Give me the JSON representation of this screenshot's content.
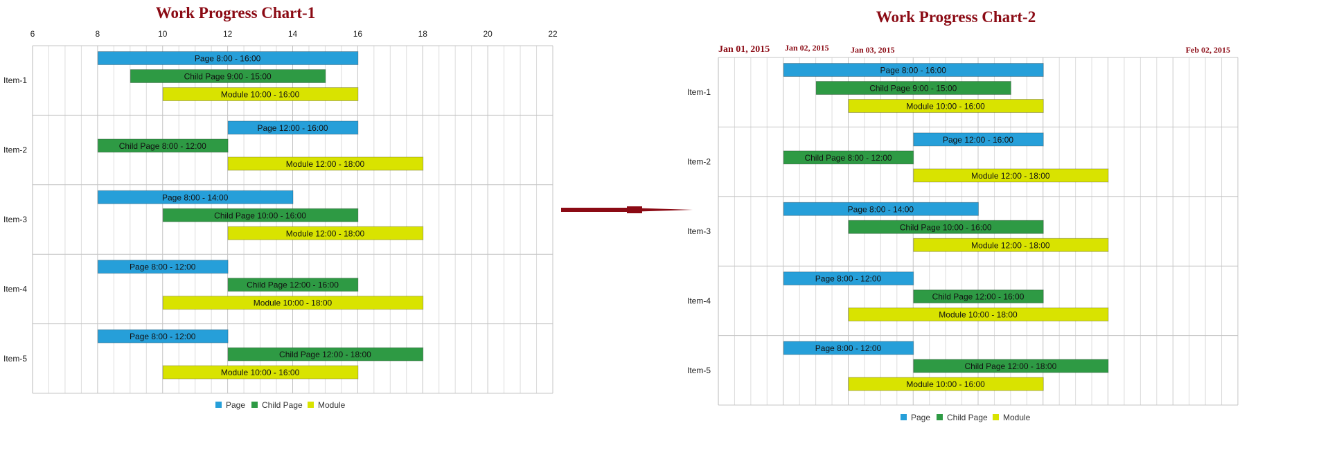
{
  "series_colors": {
    "page": "#269fd9",
    "child": "#2e9a44",
    "module": "#d9e300"
  },
  "arrow_color": "#8b0a14",
  "chart_data": [
    {
      "type": "bar",
      "title": "Work Progress Chart-1",
      "x_ticks": [
        "6",
        "8",
        "10",
        "12",
        "14",
        "16",
        "18",
        "20",
        "22"
      ],
      "xlim": [
        6,
        22
      ],
      "categories": [
        "Item-1",
        "Item-2",
        "Item-3",
        "Item-4",
        "Item-5"
      ],
      "legend": [
        "Page",
        "Child Page",
        "Module"
      ],
      "legend_position": "bottom",
      "grid": true,
      "series": [
        {
          "name": "Page",
          "color_key": "page",
          "bars": [
            {
              "start": 8,
              "end": 16,
              "label": "Page 8:00 - 16:00"
            },
            {
              "start": 12,
              "end": 16,
              "label": "Page 12:00 - 16:00"
            },
            {
              "start": 8,
              "end": 14,
              "label": "Page 8:00 - 14:00"
            },
            {
              "start": 8,
              "end": 12,
              "label": "Page 8:00 - 12:00"
            },
            {
              "start": 8,
              "end": 12,
              "label": "Page 8:00 - 12:00"
            }
          ]
        },
        {
          "name": "Child Page",
          "color_key": "child",
          "bars": [
            {
              "start": 9,
              "end": 15,
              "label": "Child Page 9:00 - 15:00"
            },
            {
              "start": 8,
              "end": 12,
              "label": "Child Page 8:00 - 12:00"
            },
            {
              "start": 10,
              "end": 16,
              "label": "Child Page 10:00 - 16:00"
            },
            {
              "start": 12,
              "end": 16,
              "label": "Child Page 12:00 - 16:00"
            },
            {
              "start": 12,
              "end": 18,
              "label": "Child Page 12:00 - 18:00"
            }
          ]
        },
        {
          "name": "Module",
          "color_key": "module",
          "bars": [
            {
              "start": 10,
              "end": 16,
              "label": "Module 10:00 - 16:00"
            },
            {
              "start": 12,
              "end": 18,
              "label": "Module 12:00 - 18:00"
            },
            {
              "start": 12,
              "end": 18,
              "label": "Module 12:00 - 18:00"
            },
            {
              "start": 10,
              "end": 18,
              "label": "Module 10:00 - 18:00"
            },
            {
              "start": 10,
              "end": 16,
              "label": "Module 10:00 - 16:00"
            }
          ]
        }
      ]
    },
    {
      "type": "bar",
      "title": "Work Progress Chart-2",
      "x_ticks": [
        "Jan 01, 2015",
        "Jan 02, 2015",
        "Jan 03, 2015",
        "Feb 02, 2015"
      ],
      "xlim": [
        6,
        22
      ],
      "categories": [
        "Item-1",
        "Item-2",
        "Item-3",
        "Item-4",
        "Item-5"
      ],
      "legend": [
        "Page",
        "Child Page",
        "Module"
      ],
      "legend_position": "bottom",
      "grid": true,
      "series": [
        {
          "name": "Page",
          "color_key": "page",
          "bars": [
            {
              "start": 8,
              "end": 16,
              "label": "Page 8:00 - 16:00"
            },
            {
              "start": 12,
              "end": 16,
              "label": "Page 12:00 - 16:00"
            },
            {
              "start": 8,
              "end": 14,
              "label": "Page 8:00 - 14:00"
            },
            {
              "start": 8,
              "end": 12,
              "label": "Page 8:00 - 12:00"
            },
            {
              "start": 8,
              "end": 12,
              "label": "Page 8:00 - 12:00"
            }
          ]
        },
        {
          "name": "Child Page",
          "color_key": "child",
          "bars": [
            {
              "start": 9,
              "end": 15,
              "label": "Child Page 9:00 - 15:00"
            },
            {
              "start": 8,
              "end": 12,
              "label": "Child Page 8:00 - 12:00"
            },
            {
              "start": 10,
              "end": 16,
              "label": "Child Page 10:00 - 16:00"
            },
            {
              "start": 12,
              "end": 16,
              "label": "Child Page 12:00 - 16:00"
            },
            {
              "start": 12,
              "end": 18,
              "label": "Child Page 12:00 - 18:00"
            }
          ]
        },
        {
          "name": "Module",
          "color_key": "module",
          "bars": [
            {
              "start": 10,
              "end": 16,
              "label": "Module 10:00 - 16:00"
            },
            {
              "start": 12,
              "end": 18,
              "label": "Module 12:00 - 18:00"
            },
            {
              "start": 12,
              "end": 18,
              "label": "Module 12:00 - 18:00"
            },
            {
              "start": 10,
              "end": 18,
              "label": "Module 10:00 - 18:00"
            },
            {
              "start": 10,
              "end": 16,
              "label": "Module 10:00 - 16:00"
            }
          ]
        }
      ]
    }
  ]
}
